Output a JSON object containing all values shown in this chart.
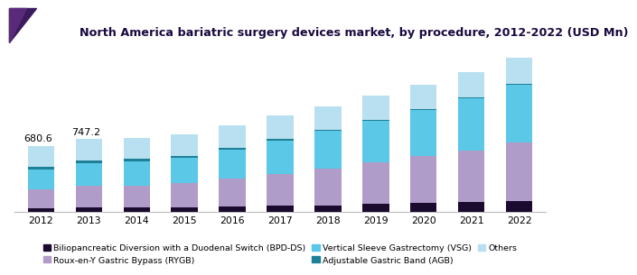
{
  "title": "North America bariatric surgery devices market, by procedure, 2012-2022 (USD Mn)",
  "years": [
    2012,
    2013,
    2014,
    2015,
    2016,
    2017,
    2018,
    2019,
    2020,
    2021,
    2022
  ],
  "labels": [
    "Biliopancreatic Diversion with a Duodenal Switch (BPD-DS)",
    "Roux-en-Y Gastric Bypass (RYGB)",
    "Vertical Sleeve Gastrectomy (VSG)",
    "Adjustable Gastric Band (AGB)",
    "Others"
  ],
  "colors": [
    "#1a0a2e",
    "#b09cc8",
    "#5bc8e8",
    "#1e8097",
    "#b8e0f0"
  ],
  "data": {
    "BPD-DS": [
      38,
      42,
      44,
      47,
      52,
      60,
      68,
      78,
      88,
      98,
      112
    ],
    "RYGB": [
      195,
      222,
      228,
      248,
      288,
      332,
      378,
      428,
      482,
      535,
      600
    ],
    "VSG": [
      205,
      235,
      248,
      262,
      300,
      342,
      385,
      432,
      478,
      535,
      600
    ],
    "AGB": [
      28,
      28,
      25,
      22,
      20,
      18,
      15,
      12,
      10,
      9,
      8
    ],
    "Others": [
      215,
      220,
      218,
      222,
      232,
      240,
      244,
      248,
      255,
      262,
      268
    ]
  },
  "annotations": [
    {
      "year_idx": 0,
      "text": "680.6",
      "xoffset": -0.05
    },
    {
      "year_idx": 1,
      "text": "747.2",
      "xoffset": -0.05
    }
  ],
  "bar_width": 0.55,
  "ylim": [
    0,
    1700
  ],
  "title_fontsize": 9.2,
  "legend_fontsize": 6.8,
  "tick_fontsize": 7.8,
  "annot_fontsize": 8.0,
  "title_color": "#1a0a40",
  "header_color": "#3b1a5e",
  "header_line_color": "#6633aa"
}
